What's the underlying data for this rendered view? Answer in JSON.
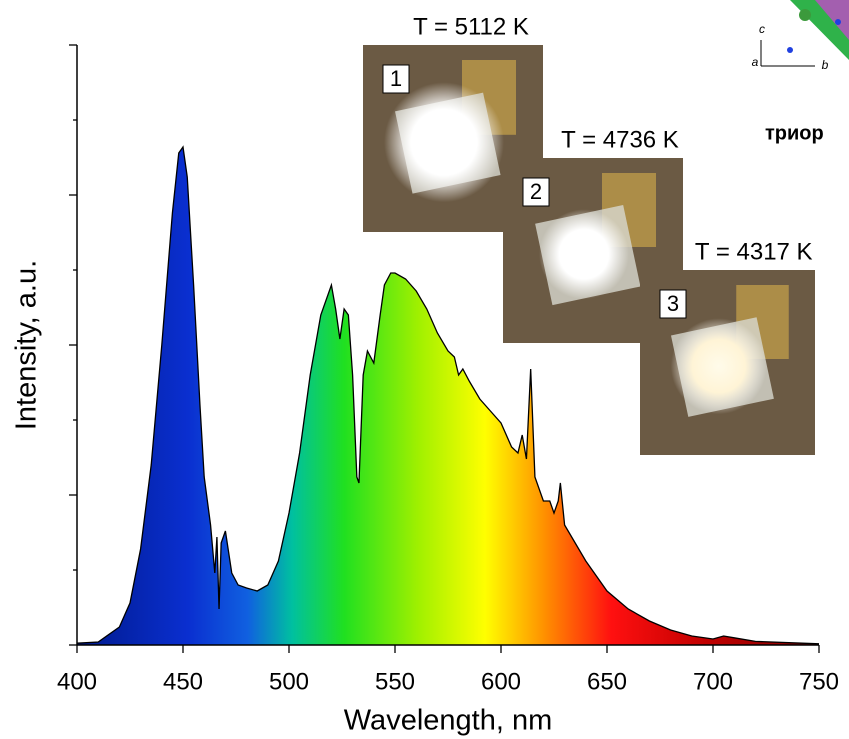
{
  "chart_data": {
    "type": "area",
    "x_label": "Wavelength, nm",
    "y_label": "Intensity, a.u.",
    "x": [
      400,
      410,
      420,
      425,
      430,
      435,
      440,
      445,
      448,
      450,
      452,
      455,
      458,
      460,
      463,
      465,
      466,
      467,
      468,
      470,
      473,
      476,
      480,
      485,
      490,
      495,
      500,
      505,
      510,
      515,
      520,
      522,
      524,
      526,
      528,
      530,
      532,
      533,
      535,
      537,
      540,
      543,
      545,
      548,
      550,
      555,
      560,
      565,
      570,
      575,
      578,
      580,
      582,
      585,
      590,
      595,
      600,
      605,
      608,
      610,
      612,
      614,
      616,
      620,
      623,
      625,
      627,
      628,
      630,
      640,
      650,
      660,
      670,
      680,
      690,
      700,
      705,
      710,
      720,
      750
    ],
    "values": [
      0.003,
      0.005,
      0.03,
      0.07,
      0.16,
      0.3,
      0.5,
      0.72,
      0.82,
      0.83,
      0.78,
      0.6,
      0.4,
      0.28,
      0.2,
      0.12,
      0.18,
      0.06,
      0.17,
      0.19,
      0.12,
      0.1,
      0.095,
      0.09,
      0.1,
      0.14,
      0.22,
      0.32,
      0.45,
      0.55,
      0.6,
      0.56,
      0.51,
      0.56,
      0.55,
      0.45,
      0.28,
      0.27,
      0.45,
      0.49,
      0.47,
      0.55,
      0.6,
      0.62,
      0.62,
      0.61,
      0.59,
      0.56,
      0.52,
      0.49,
      0.48,
      0.45,
      0.46,
      0.44,
      0.41,
      0.39,
      0.37,
      0.33,
      0.32,
      0.35,
      0.31,
      0.46,
      0.28,
      0.24,
      0.24,
      0.22,
      0.24,
      0.27,
      0.2,
      0.14,
      0.09,
      0.06,
      0.04,
      0.025,
      0.015,
      0.01,
      0.015,
      0.012,
      0.006,
      0.002
    ],
    "xlim": [
      400,
      750
    ],
    "xticks": [
      400,
      450,
      500,
      550,
      600,
      650,
      700,
      750
    ],
    "ylim": [
      0,
      1
    ],
    "yticks": [
      0,
      0.125,
      0.25,
      0.375,
      0.5,
      0.625,
      0.75,
      0.875,
      1
    ],
    "insets": [
      {
        "number": "1",
        "label": "T = 5112 K"
      },
      {
        "number": "2",
        "label": "T = 4736 K"
      },
      {
        "number": "3",
        "label": "T = 4317 K"
      }
    ],
    "corner_text": "триор",
    "crystal_axes": [
      "c",
      "a",
      "b"
    ]
  }
}
